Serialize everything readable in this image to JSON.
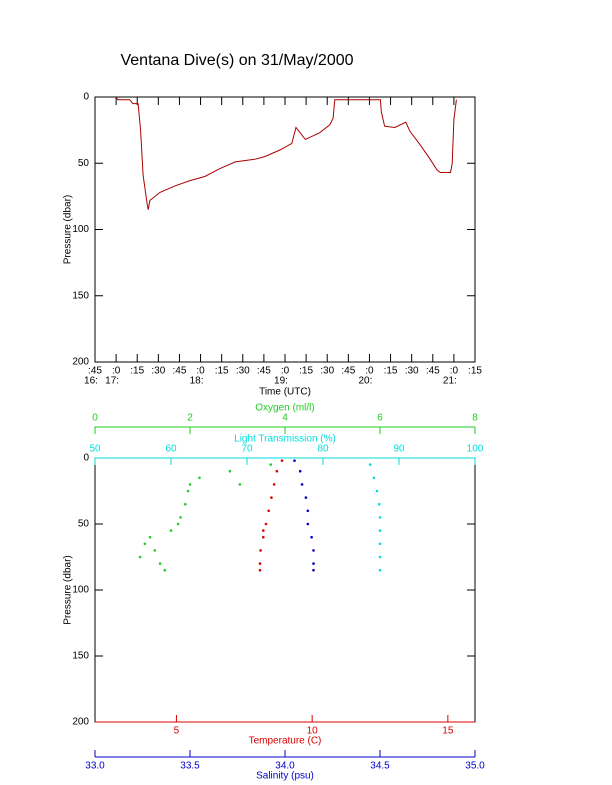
{
  "title": "Ventana Dive(s) on 31/May/2000",
  "chart_data": [
    {
      "type": "line",
      "xlabel": "Time (UTC)",
      "ylabel": "Pressure (dbar)",
      "color": "#aa0000",
      "y_inverted": true,
      "xlim": [
        16.75,
        21.25
      ],
      "ylim": [
        0,
        200
      ],
      "yticks": [
        0,
        50,
        100,
        150,
        200
      ],
      "xticks": [
        {
          "value": 16.75,
          "label": ":45"
        },
        {
          "value": 17,
          "label": ":0"
        },
        {
          "value": 17.25,
          "label": ":15"
        },
        {
          "value": 17.5,
          "label": ":30"
        },
        {
          "value": 17.75,
          "label": ":45"
        },
        {
          "value": 18,
          "label": ":0"
        },
        {
          "value": 18.25,
          "label": ":15"
        },
        {
          "value": 18.5,
          "label": ":30"
        },
        {
          "value": 18.75,
          "label": ":45"
        },
        {
          "value": 19,
          "label": ":0"
        },
        {
          "value": 19.25,
          "label": ":15"
        },
        {
          "value": 19.5,
          "label": ":30"
        },
        {
          "value": 19.75,
          "label": ":45"
        },
        {
          "value": 20,
          "label": ":0"
        },
        {
          "value": 20.25,
          "label": ":15"
        },
        {
          "value": 20.5,
          "label": ":30"
        },
        {
          "value": 20.75,
          "label": ":45"
        },
        {
          "value": 21,
          "label": ":0"
        },
        {
          "value": 21.25,
          "label": ":15"
        }
      ],
      "xticks_hours": [
        {
          "value": 16.75,
          "label": "16:"
        },
        {
          "value": 17,
          "label": "17:"
        },
        {
          "value": 18,
          "label": "18:"
        },
        {
          "value": 19,
          "label": "19:"
        },
        {
          "value": 20,
          "label": "20:"
        },
        {
          "value": 21,
          "label": "21:"
        }
      ],
      "x": [
        17.0,
        17.02,
        17.16,
        17.2,
        17.26,
        17.29,
        17.32,
        17.37,
        17.38,
        17.4,
        17.52,
        17.7,
        17.88,
        18.05,
        18.23,
        18.41,
        18.64,
        18.76,
        18.94,
        19.08,
        19.13,
        19.24,
        19.41,
        19.53,
        19.57,
        19.59,
        19.89,
        20.13,
        20.14,
        20.18,
        20.3,
        20.43,
        20.48,
        20.6,
        20.72,
        20.8,
        20.84,
        20.96,
        20.98,
        21.0,
        21.03
      ],
      "values": [
        0,
        2,
        2,
        5,
        5,
        25,
        59,
        82,
        85,
        78,
        72,
        67,
        63,
        60,
        54,
        49,
        47,
        45,
        40,
        35,
        23,
        32,
        27,
        21,
        16,
        2,
        2,
        2,
        11,
        22,
        23,
        19,
        26,
        36,
        47,
        55,
        57,
        57,
        50,
        17,
        2
      ]
    },
    {
      "type": "scatter",
      "ylabel": "Pressure (dbar)",
      "y_inverted": true,
      "ylim": [
        0,
        200
      ],
      "yticks": [
        0,
        50,
        100,
        150,
        200
      ],
      "xaxes": [
        {
          "label": "Oxygen (ml/l)",
          "color": "#22cc22",
          "lim": [
            0,
            8
          ],
          "ticks": [
            0,
            2,
            4,
            6,
            8
          ]
        },
        {
          "label": "Light Transmission (%)",
          "color": "#00dddd",
          "lim": [
            50,
            100
          ],
          "ticks": [
            50,
            60,
            70,
            80,
            90,
            100
          ]
        },
        {
          "label": "Temperature (C)",
          "color": "#dd0000",
          "lim": [
            2,
            16
          ],
          "ticks": [
            5,
            10,
            15
          ]
        },
        {
          "label": "Salinity (psu)",
          "color": "#0000cc",
          "lim": [
            33,
            35
          ],
          "ticks": [
            {
              "value": 33,
              "label": "33.0"
            },
            33.5,
            {
              "value": 34,
              "label": "34.0"
            },
            34.5,
            {
              "value": 35,
              "label": "35.0"
            }
          ]
        }
      ],
      "series": [
        {
          "color": "#22cc22",
          "xaxis": 0,
          "x": [
            3.7,
            2.84,
            3.05,
            2.2,
            2.0,
            1.96,
            1.9,
            1.8,
            1.75,
            1.6,
            1.16,
            1.05,
            1.26,
            0.95,
            1.37,
            1.47
          ],
          "y": [
            5,
            10,
            20,
            15,
            20,
            25,
            35,
            45,
            50,
            55,
            60,
            65,
            70,
            75,
            80,
            85
          ]
        },
        {
          "color": "#00dddd",
          "xaxis": 1,
          "x": [
            86.2,
            86.7,
            87.1,
            87.4,
            87.5,
            87.5,
            87.5,
            87.5,
            87.5
          ],
          "y": [
            5,
            15,
            25,
            35,
            45,
            55,
            65,
            75,
            85
          ]
        },
        {
          "color": "#dd0000",
          "xaxis": 2,
          "x": [
            8.89,
            8.7,
            8.6,
            8.5,
            8.4,
            8.3,
            8.2,
            8.2,
            8.1,
            8.08,
            8.08
          ],
          "y": [
            2,
            10,
            20,
            30,
            40,
            50,
            55,
            60,
            70,
            80,
            85
          ]
        },
        {
          "color": "#0000cc",
          "xaxis": 3,
          "x": [
            34.05,
            34.08,
            34.09,
            34.11,
            34.12,
            34.12,
            34.14,
            34.15,
            34.15,
            34.15
          ],
          "y": [
            2,
            10,
            20,
            30,
            40,
            50,
            60,
            70,
            80,
            85
          ]
        }
      ]
    }
  ]
}
